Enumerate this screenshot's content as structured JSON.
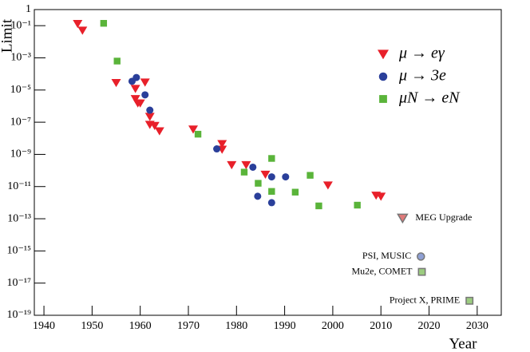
{
  "chart_data": {
    "type": "scatter",
    "x_label": "Year",
    "y_label": "Limit",
    "xlim": [
      1938,
      2035
    ],
    "xticks": [
      1940,
      1950,
      1960,
      1970,
      1980,
      1990,
      2000,
      2010,
      2020,
      2030
    ],
    "ylim": [
      1e-19,
      1
    ],
    "log_y": true,
    "yticks": [
      1,
      {
        "value": 0.1,
        "label": "10⁻¹"
      },
      {
        "value": 0.001,
        "label": "10⁻³"
      },
      {
        "value": 1e-05,
        "label": "10⁻⁵"
      },
      {
        "value": 1e-07,
        "label": "10⁻⁷"
      },
      {
        "value": 1e-09,
        "label": "10⁻⁹"
      },
      {
        "value": 1e-11,
        "label": "10⁻¹¹"
      },
      {
        "value": 1e-13,
        "label": "10⁻¹³"
      },
      {
        "value": 1e-15,
        "label": "10⁻¹⁵"
      },
      {
        "value": 1e-17,
        "label": "10⁻¹⁷"
      },
      {
        "value": 1e-19,
        "label": "10⁻¹⁹"
      }
    ],
    "legend": "upper right",
    "series": [
      {
        "name": "μ → eγ",
        "marker": "triangle",
        "color": "#e8202a",
        "x": [
          1947,
          1948,
          1955,
          1959,
          1959,
          1959.5,
          1960,
          1961,
          1962,
          1962,
          1963,
          1964,
          1971,
          1977,
          1977,
          1979,
          1982,
          1986,
          1999,
          2009,
          2010
        ],
        "values": [
          0.13,
          0.05,
          2.8e-05,
          1.2e-05,
          2.8e-06,
          1.5e-06,
          1.5e-06,
          3e-05,
          2.2e-07,
          7e-08,
          6e-08,
          2.8e-08,
          3.6e-08,
          4.5e-09,
          2e-09,
          2.2e-10,
          2.2e-10,
          5.6e-11,
          1.2e-11,
          2.8e-12,
          2.4e-12
        ]
      },
      {
        "name": "μ → 3e",
        "marker": "circle",
        "color": "#2a3f9a",
        "x": [
          1958.3,
          1959.2,
          1961,
          1962,
          1975.9,
          1983.4,
          1984.4,
          1987.3,
          1987.3,
          1990.2
        ],
        "values": [
          3.5e-05,
          6e-05,
          5e-06,
          5.6e-07,
          2.2e-09,
          1.6e-10,
          2.5e-12,
          4e-11,
          1e-12,
          4e-11
        ]
      },
      {
        "name": "μN → eN",
        "marker": "square",
        "color": "#5ab43a",
        "x": [
          1952.4,
          1955.2,
          1972,
          1981.6,
          1984.5,
          1987.3,
          1987.3,
          1992.2,
          1995.3,
          1997.1,
          2005.1
        ],
        "values": [
          0.14,
          0.00063,
          1.8e-08,
          7.9e-11,
          1.6e-11,
          5.6e-10,
          5e-12,
          4.5e-12,
          5e-11,
          6.3e-13,
          7e-13
        ]
      }
    ],
    "projections": [
      {
        "label": "MEG Upgrade",
        "marker": "triangle",
        "color": "#e07a7a",
        "x": 2014.5,
        "value": 1.1e-13
      },
      {
        "label": "PSI, MUSIC",
        "marker": "circle",
        "color": "#8fa0d4",
        "x": 2018.3,
        "value": 4.5e-16
      },
      {
        "label": "Mu2e, COMET",
        "marker": "square",
        "color": "#9ccc80",
        "x": 2018.5,
        "value": 5e-17
      },
      {
        "label": "Project X, PRIME",
        "marker": "square",
        "color": "#9ccc80",
        "x": 2028.4,
        "value": 8e-19
      }
    ]
  }
}
